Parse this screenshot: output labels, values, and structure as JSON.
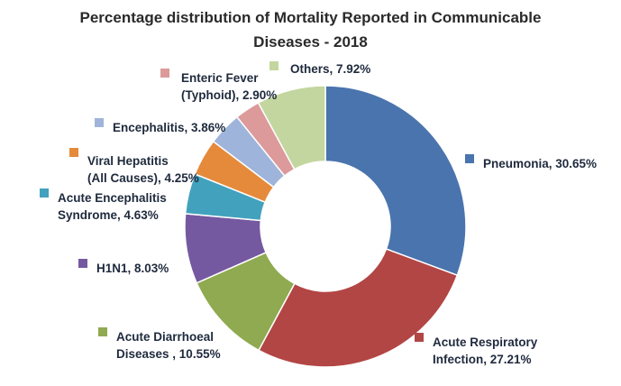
{
  "chart_data": {
    "type": "pie",
    "donut": true,
    "title_lines": [
      "Percentage distribution of Mortality Reported in Communicable",
      "Diseases - 2018"
    ],
    "unit": "%",
    "slices": [
      {
        "label_lines": [
          "Pneumonia, 30.65%"
        ],
        "value": 30.65,
        "color": "#4a74ad"
      },
      {
        "label_lines": [
          "Acute Respiratory",
          "Infection, 27.21%"
        ],
        "value": 27.21,
        "color": "#b24645"
      },
      {
        "label_lines": [
          "Acute Diarrhoeal",
          "Diseases , 10.55%"
        ],
        "value": 10.55,
        "color": "#8faa50"
      },
      {
        "label_lines": [
          "H1N1, 8.03%"
        ],
        "value": 8.03,
        "color": "#7559a0"
      },
      {
        "label_lines": [
          "Acute Encephalitis",
          "Syndrome, 4.63%"
        ],
        "value": 4.63,
        "color": "#42a2bd"
      },
      {
        "label_lines": [
          "Viral Hepatitis",
          "(All Causes), 4.25%"
        ],
        "value": 4.25,
        "color": "#e58a3b"
      },
      {
        "label_lines": [
          "Encephalitis, 3.86%"
        ],
        "value": 3.86,
        "color": "#9fb4da"
      },
      {
        "label_lines": [
          "Enteric Fever",
          "(Typhoid), 2.90%"
        ],
        "value": 2.9,
        "color": "#dc9a9a"
      },
      {
        "label_lines": [
          "Others, 7.92%"
        ],
        "value": 7.92,
        "color": "#c3d69f"
      }
    ],
    "legend_placement": "labels beside each slice"
  }
}
